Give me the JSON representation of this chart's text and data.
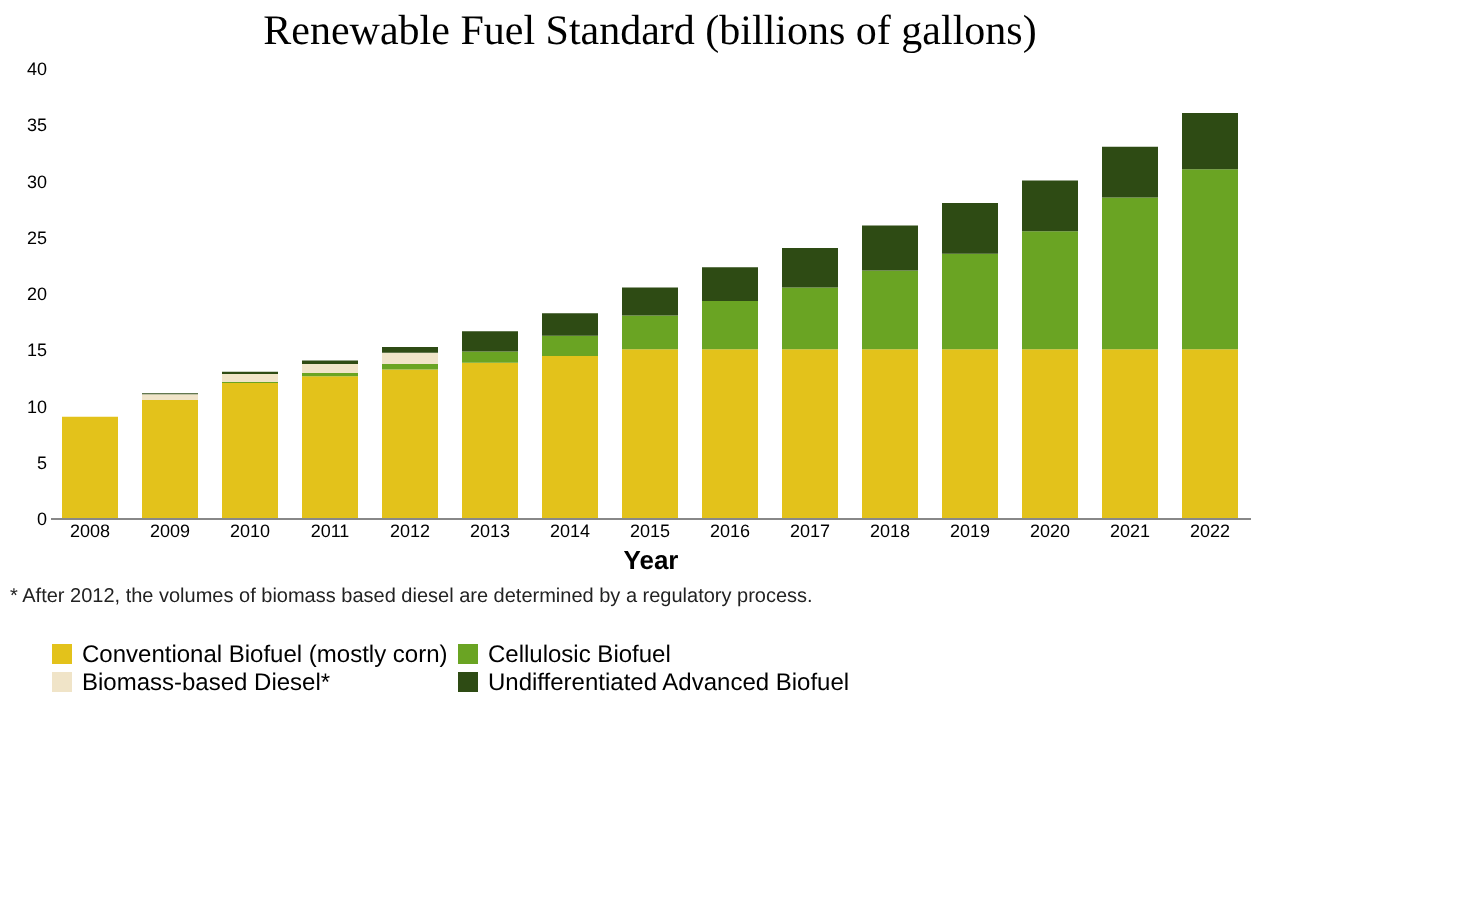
{
  "chart_data": {
    "type": "bar",
    "title": "Renewable Fuel Standard (billions of gallons)",
    "xlabel": "Year",
    "stacked": true,
    "legend": "bottom",
    "grid": false,
    "categories": [
      "2008",
      "2009",
      "2010",
      "2011",
      "2012",
      "2013",
      "2014",
      "2015",
      "2016",
      "2017",
      "2018",
      "2019",
      "2020",
      "2021",
      "2022"
    ],
    "series": [
      {
        "name": "Conventional Biofuel (mostly corn)",
        "color": "#e3c21b",
        "values": [
          9.0,
          10.5,
          12.0,
          12.6,
          13.2,
          13.8,
          14.4,
          15,
          15,
          15,
          15,
          15,
          15,
          15,
          15
        ]
      },
      {
        "name": "Cellulosic Biofuel",
        "color": "#6aa423",
        "values": [
          null,
          null,
          0.1,
          0.3,
          0.5,
          1.0,
          1.8,
          3.0,
          4.3,
          5.5,
          7.0,
          8.5,
          10.5,
          13.5,
          16.0
        ]
      },
      {
        "name": "Biomass-based Diesel*",
        "color": "#f0e4c8",
        "values": [
          null,
          0.5,
          0.7,
          0.8,
          1.0,
          null,
          null,
          null,
          null,
          null,
          null,
          null,
          null,
          null,
          null
        ]
      },
      {
        "name": "Undifferentiated Advanced Biofuel",
        "color": "#2e4b14",
        "values": [
          null,
          0.1,
          0.2,
          0.3,
          0.5,
          1.8,
          2.0,
          2.5,
          3.0,
          3.5,
          4.0,
          4.5,
          4.5,
          4.5,
          5.0
        ]
      }
    ],
    "ylim": [
      0,
      40
    ],
    "yticks": [
      0,
      5,
      10,
      15,
      20,
      25,
      30,
      35,
      40
    ],
    "annotations": [
      "* After 2012, the volumes of biomass based diesel are determined by a regulatory process."
    ]
  }
}
